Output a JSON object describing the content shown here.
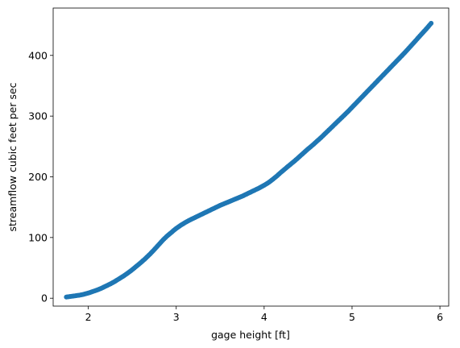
{
  "chart_data": {
    "type": "scatter",
    "title": "",
    "xlabel": "gage height [ft]",
    "ylabel": "streamflow cubic feet per sec",
    "xlim": [
      1.6,
      6.1
    ],
    "ylim": [
      -13,
      478
    ],
    "xticks": [
      2,
      3,
      4,
      5,
      6
    ],
    "yticks": [
      0,
      100,
      200,
      300,
      400
    ],
    "grid": false,
    "legend": "none",
    "series": [
      {
        "color": "#1f77b4",
        "marker": "circle",
        "points": [
          [
            1.75,
            2
          ],
          [
            1.8,
            3
          ],
          [
            1.85,
            4
          ],
          [
            1.9,
            5
          ],
          [
            1.95,
            6.5
          ],
          [
            2.0,
            8.5
          ],
          [
            2.05,
            11
          ],
          [
            2.1,
            13.5
          ],
          [
            2.15,
            16.5
          ],
          [
            2.2,
            20
          ],
          [
            2.25,
            23.5
          ],
          [
            2.3,
            27.5
          ],
          [
            2.35,
            32
          ],
          [
            2.4,
            36.5
          ],
          [
            2.45,
            41.5
          ],
          [
            2.5,
            47
          ],
          [
            2.55,
            53
          ],
          [
            2.6,
            59
          ],
          [
            2.65,
            65.5
          ],
          [
            2.7,
            72.5
          ],
          [
            2.75,
            80
          ],
          [
            2.8,
            88
          ],
          [
            2.85,
            96
          ],
          [
            2.9,
            103
          ],
          [
            2.95,
            109
          ],
          [
            3.0,
            115
          ],
          [
            3.05,
            120
          ],
          [
            3.1,
            124.5
          ],
          [
            3.15,
            128.5
          ],
          [
            3.2,
            132
          ],
          [
            3.25,
            135.5
          ],
          [
            3.3,
            139
          ],
          [
            3.35,
            142.5
          ],
          [
            3.4,
            146
          ],
          [
            3.45,
            149.5
          ],
          [
            3.5,
            153
          ],
          [
            3.55,
            156
          ],
          [
            3.6,
            159
          ],
          [
            3.65,
            162
          ],
          [
            3.7,
            165
          ],
          [
            3.75,
            168
          ],
          [
            3.8,
            171.5
          ],
          [
            3.85,
            175
          ],
          [
            3.9,
            178.5
          ],
          [
            3.95,
            182
          ],
          [
            4.0,
            186
          ],
          [
            4.05,
            190.5
          ],
          [
            4.1,
            196
          ],
          [
            4.15,
            202
          ],
          [
            4.2,
            208.5
          ],
          [
            4.25,
            214.5
          ],
          [
            4.3,
            220.5
          ],
          [
            4.35,
            226.5
          ],
          [
            4.4,
            233
          ],
          [
            4.45,
            239.5
          ],
          [
            4.5,
            246
          ],
          [
            4.55,
            252
          ],
          [
            4.6,
            258.5
          ],
          [
            4.65,
            265
          ],
          [
            4.7,
            272
          ],
          [
            4.75,
            279
          ],
          [
            4.8,
            286
          ],
          [
            4.85,
            293
          ],
          [
            4.9,
            300
          ],
          [
            4.95,
            307
          ],
          [
            5.0,
            314.5
          ],
          [
            5.05,
            322
          ],
          [
            5.1,
            329.5
          ],
          [
            5.15,
            337
          ],
          [
            5.2,
            344.5
          ],
          [
            5.25,
            352
          ],
          [
            5.3,
            359.5
          ],
          [
            5.35,
            367
          ],
          [
            5.4,
            374.5
          ],
          [
            5.45,
            382
          ],
          [
            5.5,
            389.5
          ],
          [
            5.55,
            397
          ],
          [
            5.6,
            404.5
          ],
          [
            5.65,
            412.5
          ],
          [
            5.7,
            420.5
          ],
          [
            5.75,
            428.5
          ],
          [
            5.8,
            436.5
          ],
          [
            5.85,
            444.5
          ],
          [
            5.9,
            453
          ]
        ]
      }
    ]
  }
}
